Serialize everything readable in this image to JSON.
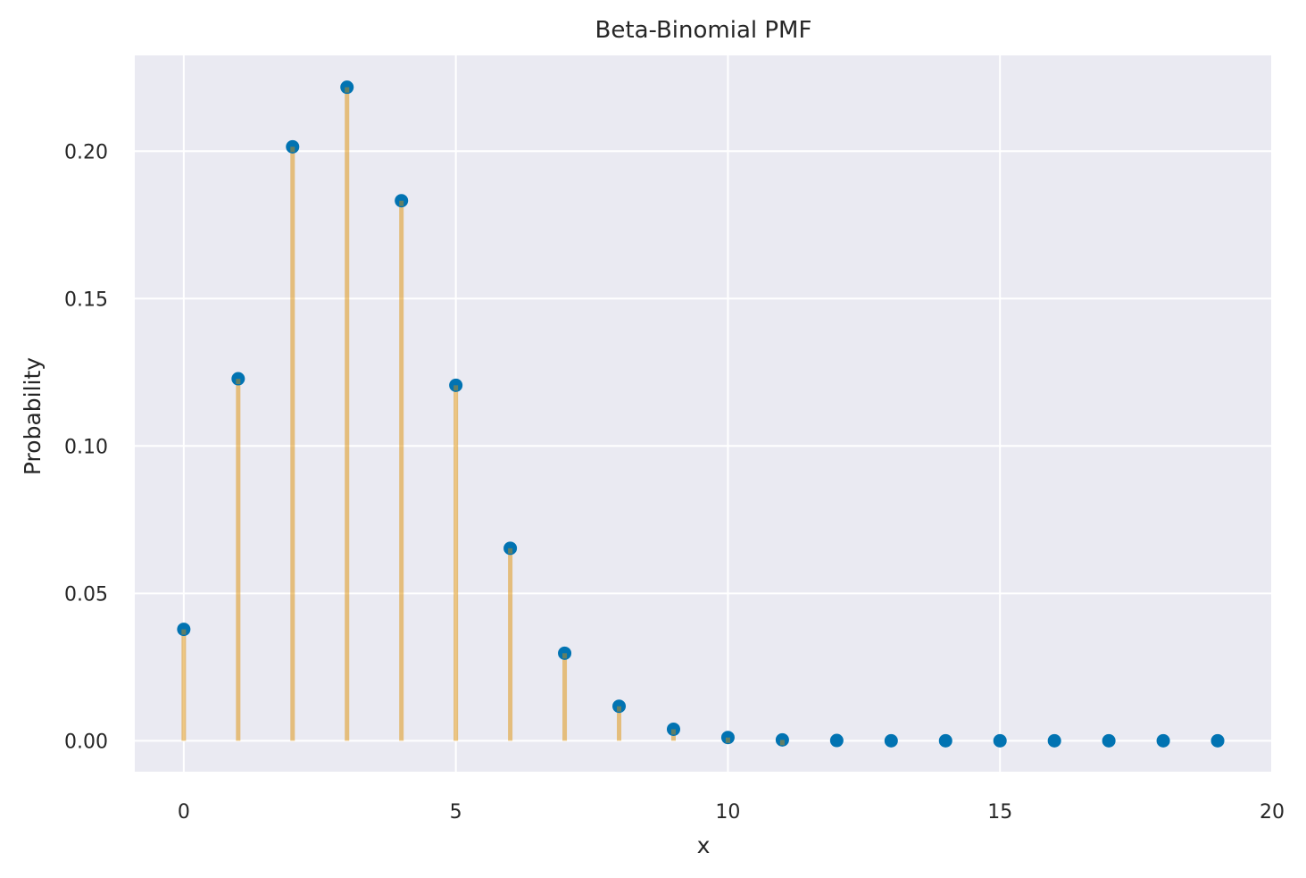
{
  "chart_data": {
    "type": "scatter",
    "title": "Beta-Binomial PMF",
    "xlabel": "x",
    "ylabel": "Probability",
    "xlim": [
      -0.9,
      20
    ],
    "ylim": [
      -0.0105,
      0.2325
    ],
    "xticks": [
      0,
      5,
      10,
      15,
      20
    ],
    "xtick_labels": [
      "0",
      "5",
      "10",
      "15",
      "20"
    ],
    "yticks": [
      0.0,
      0.05,
      0.1,
      0.15,
      0.2
    ],
    "ytick_labels": [
      "0.00",
      "0.05",
      "0.10",
      "0.15",
      "0.20"
    ],
    "grid": true,
    "legend": "none",
    "series": [
      {
        "kind": "stem",
        "x": [
          0,
          1,
          2,
          3,
          4,
          5,
          6,
          7,
          8,
          9,
          10,
          11,
          12,
          13,
          14,
          15,
          16,
          17,
          18,
          19
        ],
        "values": [
          0.0378,
          0.1228,
          0.2015,
          0.2217,
          0.1832,
          0.1206,
          0.0653,
          0.0297,
          0.0117,
          0.0039,
          0.0011,
          0.0003,
          0.0001,
          0.0,
          0.0,
          0.0,
          0.0,
          0.0,
          0.0,
          0.0
        ]
      }
    ],
    "colors": {
      "background": "#EAEAF2",
      "grid": "#FFFFFF",
      "marker": "#0173B2",
      "stem": "#DE8F05"
    }
  }
}
